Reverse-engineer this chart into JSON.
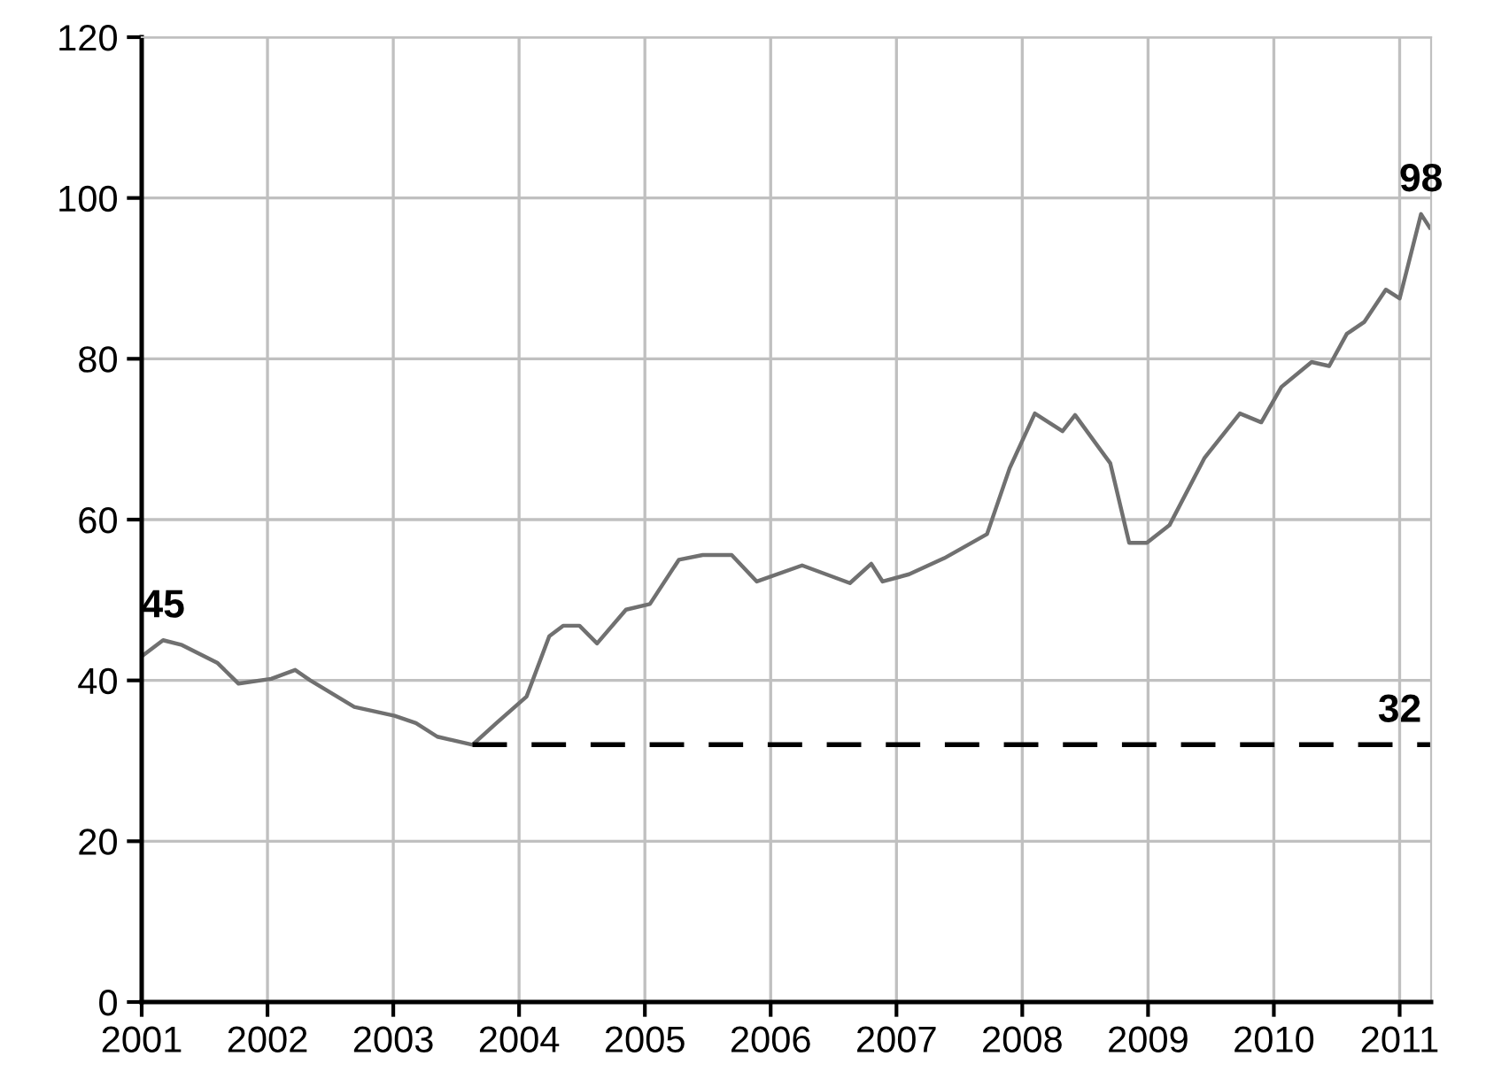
{
  "chart_data": {
    "type": "line",
    "xlim": [
      2001,
      2011.25
    ],
    "xticks": [
      2001,
      2002,
      2003,
      2004,
      2005,
      2006,
      2007,
      2008,
      2009,
      2010,
      2011
    ],
    "ylim": [
      0,
      120
    ],
    "yticks": [
      0,
      20,
      40,
      60,
      80,
      100,
      120
    ],
    "grid": true,
    "series": [
      {
        "color": "#707070",
        "line_style": "solid",
        "x": [
          2001.0,
          2001.17,
          2001.32,
          2001.6,
          2001.77,
          2002.03,
          2002.22,
          2002.34,
          2002.69,
          2003.01,
          2003.18,
          2003.35,
          2003.63,
          2003.82,
          2004.06,
          2004.24,
          2004.35,
          2004.48,
          2004.62,
          2004.85,
          2005.04,
          2005.27,
          2005.46,
          2005.69,
          2005.89,
          2006.25,
          2006.63,
          2006.8,
          2006.89,
          2007.1,
          2007.38,
          2007.72,
          2007.9,
          2008.1,
          2008.32,
          2008.42,
          2008.7,
          2008.85,
          2008.99,
          2009.17,
          2009.45,
          2009.73,
          2009.9,
          2010.06,
          2010.3,
          2010.44,
          2010.58,
          2010.72,
          2010.89,
          2011.0,
          2011.17,
          2011.24
        ],
        "values": [
          43,
          45,
          44.4,
          42.2,
          39.6,
          40.2,
          41.3,
          40,
          36.7,
          35.6,
          34.7,
          33,
          32,
          34.7,
          38,
          45.5,
          46.8,
          46.8,
          44.6,
          48.8,
          49.5,
          55,
          55.6,
          55.6,
          52.3,
          54.3,
          52.1,
          54.5,
          52.3,
          53.2,
          55.2,
          58.2,
          66.4,
          73.2,
          71,
          73,
          67,
          57.1,
          57.1,
          59.3,
          67.7,
          73.2,
          72.1,
          76.5,
          79.6,
          79.1,
          83.1,
          84.6,
          88.6,
          87.5,
          98,
          96.3
        ]
      },
      {
        "color": "#000000",
        "line_style": "dashed",
        "x": [
          2003.63,
          2011.25
        ],
        "values": [
          32,
          32
        ]
      }
    ],
    "annotations": [
      {
        "text": "45",
        "x": 2001.17,
        "y": 45
      },
      {
        "text": "98",
        "x": 2011.17,
        "y": 98
      },
      {
        "text": "32",
        "x": 2011.0,
        "y": 32
      }
    ]
  }
}
